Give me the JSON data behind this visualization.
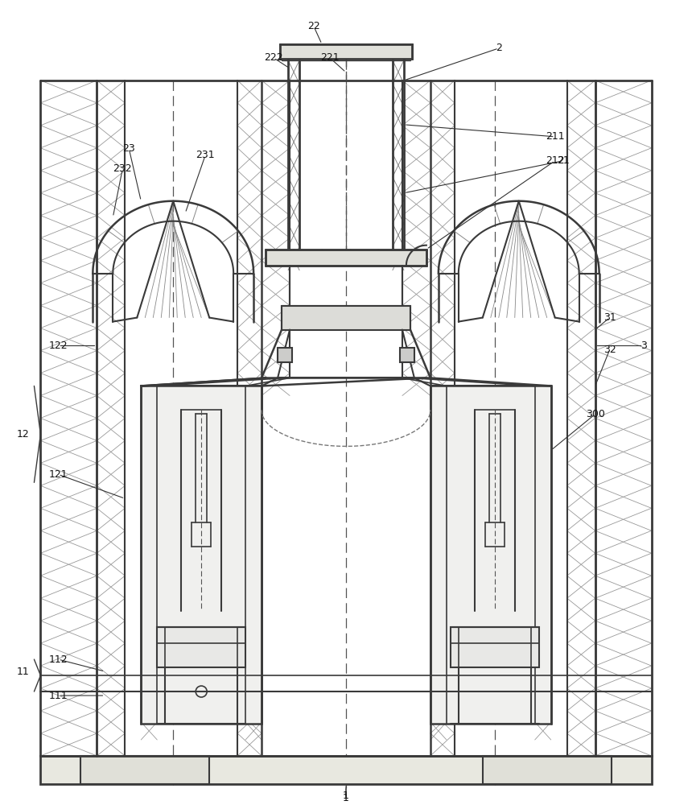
{
  "bg_color": "#ffffff",
  "lc": "#3a3a3a",
  "lc_thin": "#666666",
  "hatch_color": "#aaaaaa",
  "fig_w": 8.6,
  "fig_h": 10.0,
  "dpi": 100
}
